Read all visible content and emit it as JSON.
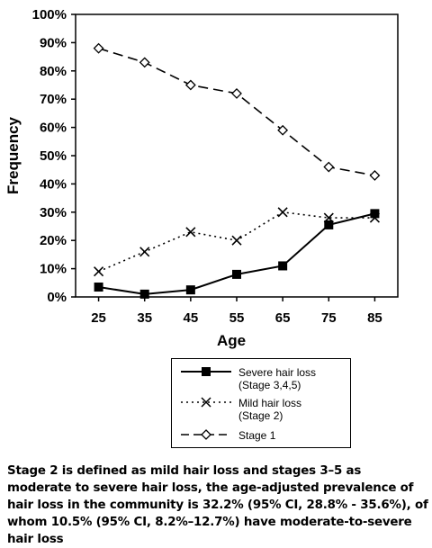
{
  "chart_data": {
    "type": "line",
    "title": "",
    "xlabel": "Age",
    "ylabel": "Frequency",
    "x": [
      25,
      35,
      45,
      55,
      65,
      75,
      85
    ],
    "ylim": [
      0,
      100
    ],
    "yticks": [
      "0%",
      "10%",
      "20%",
      "30%",
      "40%",
      "50%",
      "60%",
      "70%",
      "80%",
      "90%",
      "100%"
    ],
    "xticks": [
      "25",
      "35",
      "45",
      "55",
      "65",
      "75",
      "85"
    ],
    "grid": false,
    "legend_position": "bottom",
    "series": [
      {
        "name": "Severe hair loss",
        "name_line2": "(Stage 3,4,5)",
        "style": "solid-square",
        "values": [
          3.5,
          1,
          2.5,
          8,
          11,
          25.5,
          29.5
        ]
      },
      {
        "name": "Mild hair loss",
        "name_line2": "(Stage 2)",
        "style": "dotted-x",
        "values": [
          9,
          16,
          23,
          20,
          30,
          28,
          28
        ]
      },
      {
        "name": "Stage 1",
        "name_line2": "",
        "style": "dashed-diamond",
        "values": [
          88,
          83,
          75,
          72,
          59,
          46,
          43
        ]
      }
    ]
  },
  "caption": "Stage 2 is defined as mild hair loss and stages 3–5 as moderate to severe hair loss, the age-adjusted prevalence of hair loss in the community is 32.2% (95% CI, 28.8% - 35.6%), of whom 10.5% (95% CI, 8.2%–12.7%) have moderate-to-severe hair loss"
}
